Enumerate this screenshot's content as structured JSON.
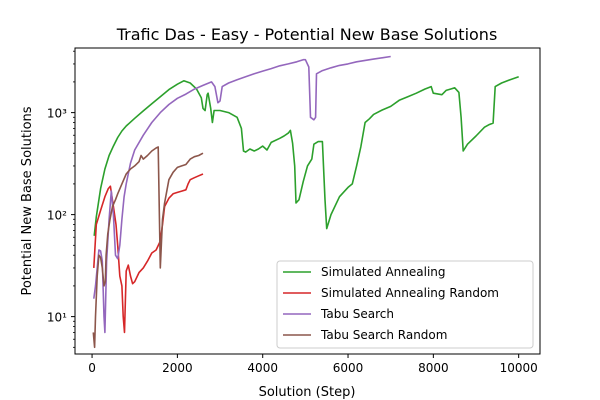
{
  "chart_data": {
    "type": "line",
    "title": "Trafic Das - Easy - Potential New Base Solutions",
    "xlabel": "Solution (Step)",
    "ylabel": "Potential New Base Solutions",
    "xlim": [
      -400,
      10500
    ],
    "ylim": [
      4.3,
      4300
    ],
    "yscale": "log",
    "grid": false,
    "legend_position": "lower right",
    "x_ticks": [
      0,
      2000,
      4000,
      6000,
      8000,
      10000
    ],
    "x_tick_labels": [
      "0",
      "2000",
      "4000",
      "6000",
      "8000",
      "10000"
    ],
    "y_ticks": [
      10,
      100,
      1000
    ],
    "y_tick_labels": [
      "10¹",
      "10²",
      "10³"
    ],
    "series": [
      {
        "name": "Simulated Annealing",
        "color": "#2ca02c",
        "points": [
          [
            50,
            62
          ],
          [
            100,
            95
          ],
          [
            200,
            180
          ],
          [
            300,
            280
          ],
          [
            400,
            380
          ],
          [
            500,
            470
          ],
          [
            600,
            570
          ],
          [
            700,
            660
          ],
          [
            800,
            740
          ],
          [
            1000,
            880
          ],
          [
            1200,
            1040
          ],
          [
            1400,
            1220
          ],
          [
            1600,
            1430
          ],
          [
            1800,
            1680
          ],
          [
            2000,
            1900
          ],
          [
            2150,
            2050
          ],
          [
            2300,
            1950
          ],
          [
            2450,
            1700
          ],
          [
            2560,
            1400
          ],
          [
            2600,
            1100
          ],
          [
            2650,
            1050
          ],
          [
            2700,
            1500
          ],
          [
            2720,
            1550
          ],
          [
            2780,
            1100
          ],
          [
            2820,
            800
          ],
          [
            2860,
            1050
          ],
          [
            3000,
            1050
          ],
          [
            3200,
            1000
          ],
          [
            3400,
            900
          ],
          [
            3500,
            700
          ],
          [
            3550,
            420
          ],
          [
            3600,
            410
          ],
          [
            3700,
            440
          ],
          [
            3800,
            420
          ],
          [
            3900,
            440
          ],
          [
            4000,
            470
          ],
          [
            4100,
            430
          ],
          [
            4200,
            510
          ],
          [
            4400,
            560
          ],
          [
            4500,
            590
          ],
          [
            4600,
            630
          ],
          [
            4650,
            670
          ],
          [
            4700,
            500
          ],
          [
            4750,
            300
          ],
          [
            4780,
            130
          ],
          [
            4850,
            140
          ],
          [
            4950,
            210
          ],
          [
            5050,
            300
          ],
          [
            5150,
            350
          ],
          [
            5200,
            490
          ],
          [
            5300,
            520
          ],
          [
            5400,
            520
          ],
          [
            5460,
            140
          ],
          [
            5500,
            73
          ],
          [
            5600,
            100
          ],
          [
            5800,
            150
          ],
          [
            6000,
            185
          ],
          [
            6100,
            200
          ],
          [
            6200,
            300
          ],
          [
            6300,
            460
          ],
          [
            6400,
            800
          ],
          [
            6500,
            870
          ],
          [
            6600,
            960
          ],
          [
            6800,
            1060
          ],
          [
            7000,
            1150
          ],
          [
            7200,
            1320
          ],
          [
            7400,
            1430
          ],
          [
            7600,
            1550
          ],
          [
            7800,
            1700
          ],
          [
            7950,
            1800
          ],
          [
            8000,
            1550
          ],
          [
            8200,
            1500
          ],
          [
            8300,
            1650
          ],
          [
            8400,
            1700
          ],
          [
            8500,
            1750
          ],
          [
            8600,
            1580
          ],
          [
            8650,
            900
          ],
          [
            8700,
            420
          ],
          [
            8800,
            490
          ],
          [
            9000,
            590
          ],
          [
            9200,
            720
          ],
          [
            9300,
            760
          ],
          [
            9400,
            790
          ],
          [
            9450,
            1800
          ],
          [
            9600,
            1950
          ],
          [
            9800,
            2100
          ],
          [
            10000,
            2250
          ]
        ]
      },
      {
        "name": "Simulated Annealing Random",
        "color": "#d62728",
        "points": [
          [
            40,
            30
          ],
          [
            100,
            80
          ],
          [
            200,
            110
          ],
          [
            300,
            150
          ],
          [
            380,
            180
          ],
          [
            430,
            190
          ],
          [
            500,
            120
          ],
          [
            560,
            80
          ],
          [
            600,
            50
          ],
          [
            650,
            25
          ],
          [
            700,
            20
          ],
          [
            730,
            10
          ],
          [
            760,
            7
          ],
          [
            800,
            28
          ],
          [
            850,
            32
          ],
          [
            900,
            25
          ],
          [
            950,
            21
          ],
          [
            1000,
            22
          ],
          [
            1100,
            27
          ],
          [
            1200,
            30
          ],
          [
            1300,
            35
          ],
          [
            1400,
            42
          ],
          [
            1500,
            45
          ],
          [
            1600,
            55
          ],
          [
            1650,
            80
          ],
          [
            1700,
            120
          ],
          [
            1800,
            145
          ],
          [
            1900,
            160
          ],
          [
            2000,
            165
          ],
          [
            2100,
            170
          ],
          [
            2200,
            175
          ],
          [
            2250,
            200
          ],
          [
            2300,
            220
          ],
          [
            2400,
            230
          ],
          [
            2500,
            240
          ],
          [
            2600,
            250
          ]
        ]
      },
      {
        "name": "Tabu Search",
        "color": "#9467bd",
        "points": [
          [
            40,
            15
          ],
          [
            80,
            20
          ],
          [
            120,
            30
          ],
          [
            160,
            45
          ],
          [
            200,
            44
          ],
          [
            240,
            35
          ],
          [
            280,
            10
          ],
          [
            300,
            7
          ],
          [
            340,
            35
          ],
          [
            400,
            90
          ],
          [
            450,
            170
          ],
          [
            500,
            100
          ],
          [
            550,
            40
          ],
          [
            600,
            37
          ],
          [
            650,
            50
          ],
          [
            700,
            90
          ],
          [
            750,
            150
          ],
          [
            800,
            200
          ],
          [
            900,
            320
          ],
          [
            1000,
            430
          ],
          [
            1200,
            600
          ],
          [
            1400,
            800
          ],
          [
            1600,
            1000
          ],
          [
            1800,
            1200
          ],
          [
            2000,
            1380
          ],
          [
            2200,
            1520
          ],
          [
            2400,
            1700
          ],
          [
            2600,
            1850
          ],
          [
            2800,
            2000
          ],
          [
            2880,
            1800
          ],
          [
            2950,
            1250
          ],
          [
            3000,
            1300
          ],
          [
            3050,
            1800
          ],
          [
            3200,
            1950
          ],
          [
            3400,
            2100
          ],
          [
            3600,
            2250
          ],
          [
            3800,
            2400
          ],
          [
            4000,
            2550
          ],
          [
            4200,
            2700
          ],
          [
            4400,
            2880
          ],
          [
            4600,
            3000
          ],
          [
            4800,
            3150
          ],
          [
            4950,
            3300
          ],
          [
            5000,
            3300
          ],
          [
            5080,
            2800
          ],
          [
            5120,
            900
          ],
          [
            5200,
            850
          ],
          [
            5240,
            900
          ],
          [
            5260,
            2400
          ],
          [
            5400,
            2580
          ],
          [
            5600,
            2750
          ],
          [
            5800,
            2900
          ],
          [
            6000,
            3000
          ],
          [
            6200,
            3150
          ],
          [
            6400,
            3250
          ],
          [
            6600,
            3350
          ],
          [
            6800,
            3450
          ],
          [
            7000,
            3550
          ]
        ]
      },
      {
        "name": "Tabu Search Random",
        "color": "#8c564b",
        "points": [
          [
            30,
            7
          ],
          [
            60,
            5
          ],
          [
            80,
            10
          ],
          [
            120,
            25
          ],
          [
            160,
            40
          ],
          [
            200,
            38
          ],
          [
            240,
            30
          ],
          [
            280,
            20
          ],
          [
            310,
            22
          ],
          [
            330,
            40
          ],
          [
            370,
            65
          ],
          [
            420,
            90
          ],
          [
            480,
            120
          ],
          [
            550,
            140
          ],
          [
            600,
            160
          ],
          [
            700,
            200
          ],
          [
            800,
            250
          ],
          [
            900,
            280
          ],
          [
            1000,
            300
          ],
          [
            1100,
            330
          ],
          [
            1150,
            380
          ],
          [
            1200,
            350
          ],
          [
            1300,
            380
          ],
          [
            1400,
            420
          ],
          [
            1500,
            450
          ],
          [
            1550,
            460
          ],
          [
            1600,
            30
          ],
          [
            1650,
            90
          ],
          [
            1700,
            130
          ],
          [
            1800,
            220
          ],
          [
            1900,
            260
          ],
          [
            2000,
            290
          ],
          [
            2100,
            300
          ],
          [
            2200,
            310
          ],
          [
            2300,
            350
          ],
          [
            2400,
            370
          ],
          [
            2500,
            380
          ],
          [
            2600,
            400
          ]
        ]
      }
    ]
  }
}
